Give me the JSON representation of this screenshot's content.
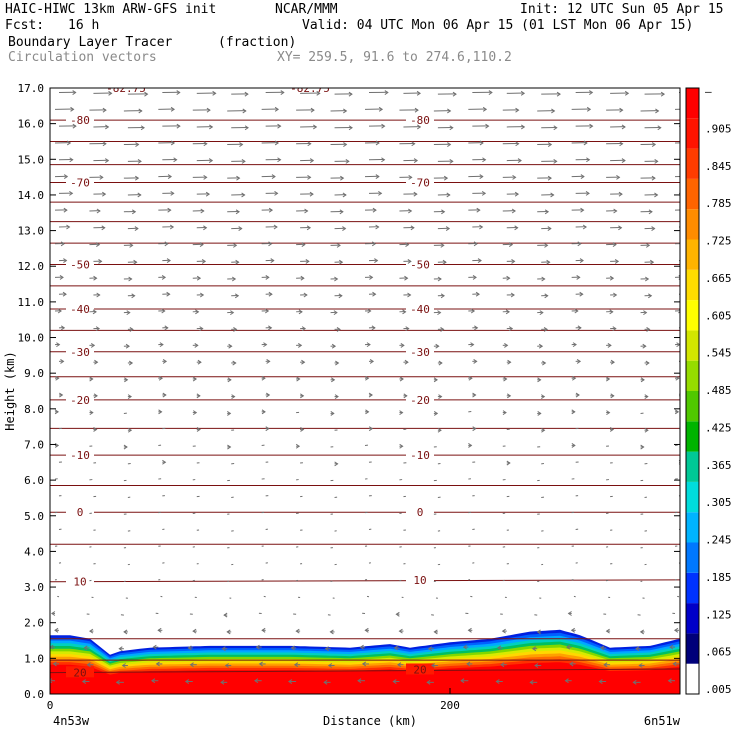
{
  "header": {
    "model": "HAIC-HIWC 13km ARW-GFS init",
    "org": "NCAR/MMM",
    "init": "Init: 12 UTC Sun 05 Apr 15",
    "fcst_label": "Fcst:",
    "fcst_value": "16 h",
    "valid": "Valid: 04 UTC Mon 06 Apr 15 (01 LST Mon 06 Apr 15)",
    "field": "Boundary Layer Tracer",
    "units": "(fraction)",
    "vectors": "Circulation vectors",
    "xy": "XY= 259.5, 91.6 to 274.6,110.2"
  },
  "chart_data": {
    "type": "heatmap",
    "xlabel": "Distance (km)",
    "ylabel": "Height (km)",
    "xlim": [
      0,
      315
    ],
    "ylim": [
      0,
      17
    ],
    "x_ticks": [
      {
        "value": 0,
        "label": "0"
      },
      {
        "value": 200,
        "label": "200"
      }
    ],
    "x_end_labels": {
      "left": "4n53w",
      "right": "6n51w"
    },
    "y_ticks": [
      "0.0",
      "1.0",
      "2.0",
      "3.0",
      "4.0",
      "5.0",
      "6.0",
      "7.0",
      "8.0",
      "9.0",
      "10.0",
      "11.0",
      "12.0",
      "13.0",
      "14.0",
      "15.0",
      "16.0",
      "17.0"
    ],
    "colorbar": {
      "labels": [
        "–",
        ".905",
        ".845",
        ".785",
        ".725",
        ".665",
        ".605",
        ".545",
        ".485",
        ".425",
        ".365",
        ".305",
        ".245",
        ".185",
        ".125",
        ".065",
        ".005"
      ],
      "colors": [
        "#ffffff",
        "#00007a",
        "#0000c8",
        "#0032ff",
        "#0078ff",
        "#00b4ff",
        "#00dcdc",
        "#00c896",
        "#00b400",
        "#50c800",
        "#96dc00",
        "#d2e600",
        "#ffff00",
        "#ffdc00",
        "#ffb400",
        "#ff8c00",
        "#ff6400",
        "#ff3c00",
        "#ff1400",
        "#ff0000"
      ]
    },
    "temperature_contours": [
      {
        "label": "20",
        "height": [
          0.6,
          0.7
        ]
      },
      {
        "label": "10",
        "height": [
          3.15,
          3.2
        ]
      },
      {
        "label": "0",
        "height": [
          5.1,
          5.1
        ]
      },
      {
        "label": "-10",
        "height": [
          6.7,
          6.7
        ]
      },
      {
        "label": "-20",
        "height": [
          8.25,
          8.25
        ]
      },
      {
        "label": "-30",
        "height": [
          9.6,
          9.6
        ]
      },
      {
        "label": "-40",
        "height": [
          10.8,
          10.8
        ]
      },
      {
        "label": "-50",
        "height": [
          12.05,
          12.05
        ]
      },
      {
        "label": "-70",
        "height": [
          14.35,
          14.35
        ]
      },
      {
        "label": "-80",
        "height": [
          16.1,
          16.1
        ]
      }
    ],
    "unlabeled_contours": [
      0.95,
      1.55,
      4.2,
      5.85,
      7.45,
      8.9,
      10.2,
      11.45,
      12.65,
      13.25,
      13.8,
      14.85,
      15.5
    ],
    "top_labels": [
      "-82.75",
      "-82.75"
    ],
    "tracer_top": {
      "x": [
        0,
        10,
        20,
        30,
        35,
        50,
        80,
        120,
        150,
        170,
        180,
        200,
        220,
        240,
        255,
        265,
        280,
        300,
        315
      ],
      "height": [
        1.65,
        1.65,
        1.55,
        1.1,
        1.2,
        1.3,
        1.35,
        1.35,
        1.3,
        1.4,
        1.3,
        1.45,
        1.55,
        1.75,
        1.8,
        1.65,
        1.3,
        1.35,
        1.55
      ]
    }
  }
}
